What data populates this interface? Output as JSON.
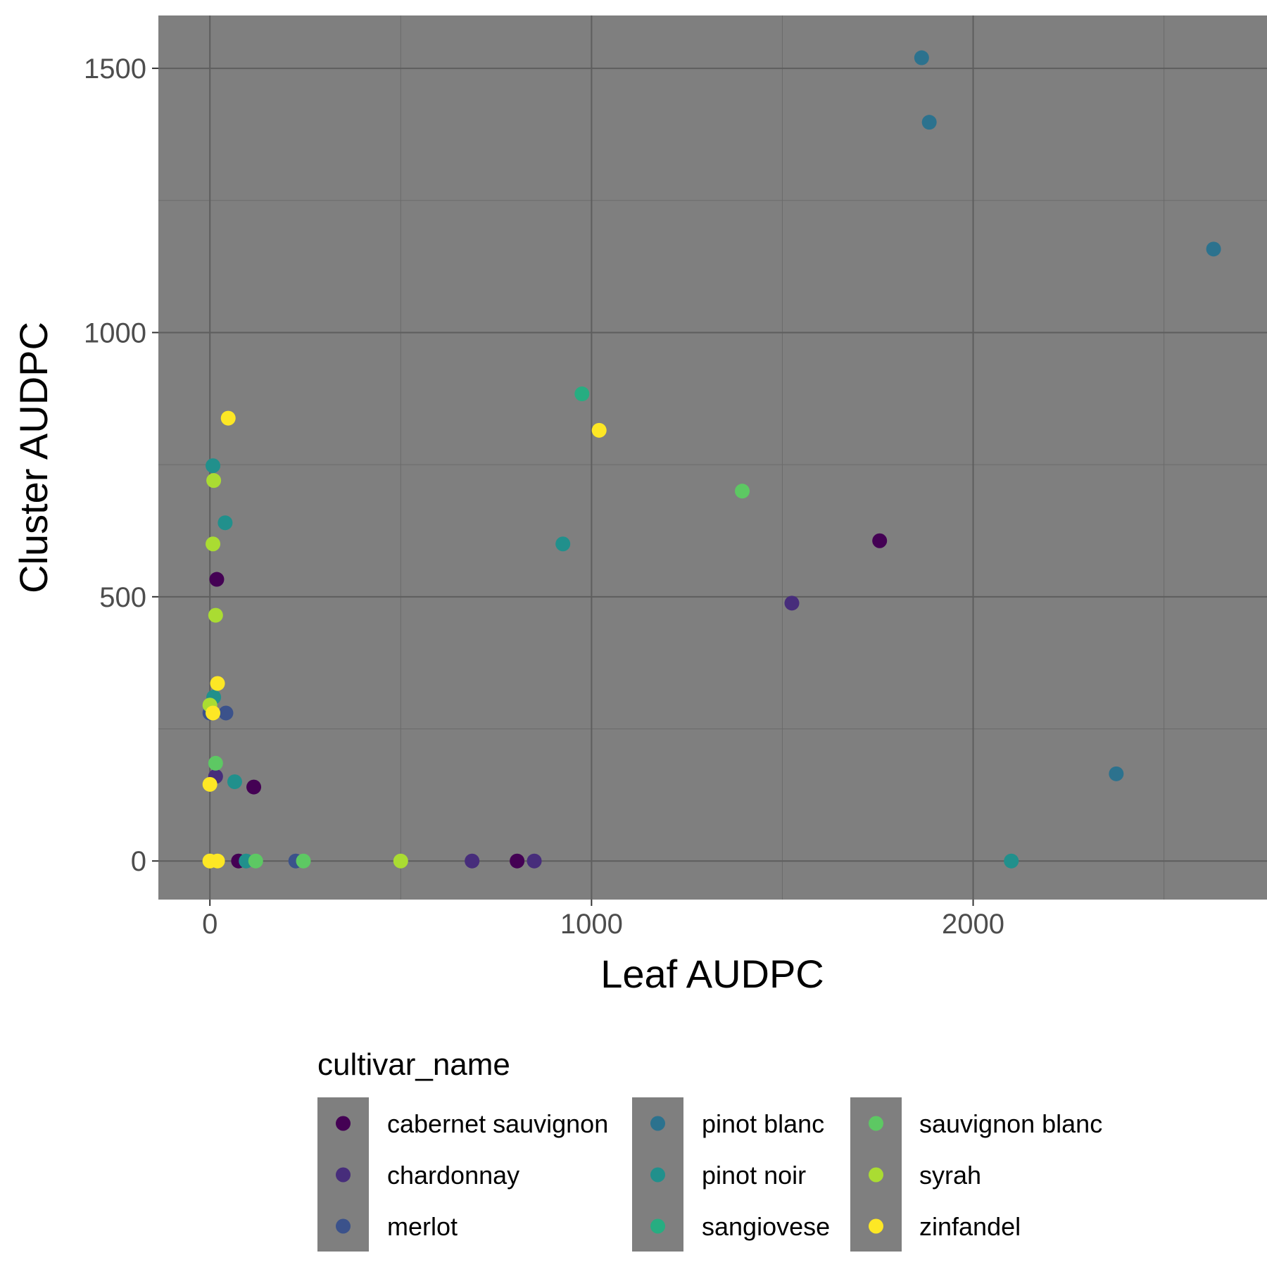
{
  "chart_data": {
    "type": "scatter",
    "xlabel": "Leaf AUDPC",
    "ylabel": "Cluster AUDPC",
    "xlim": [
      -135,
      2770
    ],
    "ylim": [
      -73,
      1600
    ],
    "x_ticks": [
      0,
      1000,
      2000
    ],
    "y_ticks": [
      0,
      500,
      1000,
      1500
    ],
    "x_minor": [
      500,
      1500,
      2500
    ],
    "y_minor": [
      250,
      750,
      1250
    ],
    "grid": true,
    "legend": {
      "title": "cultivar_name",
      "position": "bottom",
      "columns": [
        [
          "cabernet sauvignon",
          "chardonnay",
          "merlot"
        ],
        [
          "pinot blanc",
          "pinot noir",
          "sangiovese"
        ],
        [
          "sauvignon blanc",
          "syrah",
          "zinfandel"
        ]
      ]
    },
    "series": [
      {
        "name": "cabernet sauvignon",
        "color": "#440154",
        "points": [
          [
            18,
            533
          ],
          [
            115,
            140
          ],
          [
            75,
            0
          ],
          [
            805,
            0
          ],
          [
            1755,
            606
          ]
        ]
      },
      {
        "name": "chardonnay",
        "color": "#472D7B",
        "points": [
          [
            15,
            160
          ],
          [
            687,
            0
          ],
          [
            850,
            0
          ],
          [
            1525,
            488
          ]
        ]
      },
      {
        "name": "merlot",
        "color": "#3B528B",
        "points": [
          [
            0,
            280
          ],
          [
            42,
            280
          ],
          [
            225,
            0
          ]
        ]
      },
      {
        "name": "pinot blanc",
        "color": "#2C728E",
        "points": [
          [
            1865,
            1520
          ],
          [
            1885,
            1398
          ],
          [
            2375,
            165
          ],
          [
            2630,
            1158
          ]
        ]
      },
      {
        "name": "pinot noir",
        "color": "#21908C",
        "points": [
          [
            8,
            748
          ],
          [
            40,
            640
          ],
          [
            65,
            150
          ],
          [
            925,
            600
          ],
          [
            95,
            0
          ],
          [
            2100,
            0
          ],
          [
            10,
            310
          ]
        ]
      },
      {
        "name": "sangiovese",
        "color": "#27AD81",
        "points": [
          [
            975,
            884
          ]
        ]
      },
      {
        "name": "sauvignon blanc",
        "color": "#5DC863",
        "points": [
          [
            15,
            185
          ],
          [
            120,
            0
          ],
          [
            245,
            0
          ],
          [
            1395,
            700
          ]
        ]
      },
      {
        "name": "syrah",
        "color": "#AADC32",
        "points": [
          [
            10,
            720
          ],
          [
            8,
            600
          ],
          [
            15,
            465
          ],
          [
            0,
            295
          ],
          [
            500,
            0
          ],
          [
            0,
            0
          ]
        ]
      },
      {
        "name": "zinfandel",
        "color": "#FDE725",
        "points": [
          [
            48,
            838
          ],
          [
            20,
            336
          ],
          [
            8,
            280
          ],
          [
            0,
            145
          ],
          [
            0,
            0
          ],
          [
            20,
            0
          ],
          [
            1020,
            815
          ]
        ]
      }
    ]
  }
}
